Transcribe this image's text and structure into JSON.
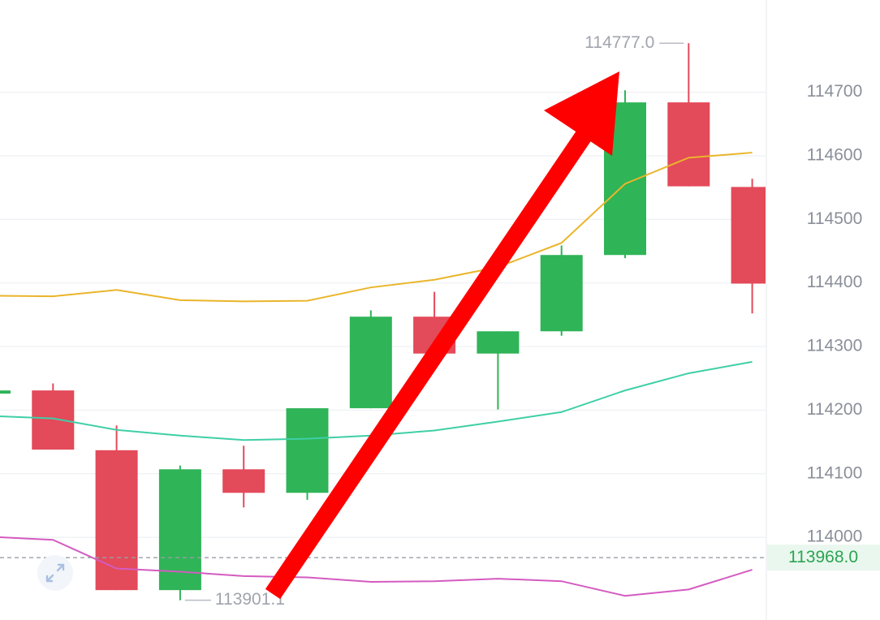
{
  "chart_data": {
    "type": "candlestick",
    "categories": [
      null,
      null,
      null,
      null,
      null,
      null,
      null,
      null,
      null,
      null,
      null,
      null,
      null
    ],
    "open": [
      114226,
      114231,
      114137,
      113917,
      114107,
      114070,
      114203,
      114347,
      114289,
      114324,
      114444,
      114684,
      114551
    ],
    "high": [
      114231,
      114242,
      114176,
      114113,
      114144,
      114203,
      114357,
      114386,
      114324,
      114459,
      114703,
      114777,
      114564
    ],
    "low": [
      114226,
      114138,
      113917,
      113901.1,
      114047,
      114059,
      114203,
      114276,
      114201,
      114317,
      114439,
      114552,
      114352
    ],
    "close": [
      114231,
      114138,
      113917,
      114107,
      114070,
      114203,
      114347,
      114289,
      114324,
      114444,
      114684,
      114552,
      114399
    ],
    "up_color": "#2fb457",
    "down_color": "#e34a5a",
    "moving_averages": [
      {
        "color": "#eab52a",
        "values": [
          114380,
          114379,
          114389,
          114373,
          114371,
          114372,
          114393,
          114405,
          114425,
          114463,
          114556,
          114597,
          114605
        ]
      },
      {
        "color": "#3fcfa6",
        "values": [
          114191,
          114187,
          114169,
          114160,
          114153,
          114155,
          114160,
          114168,
          114182,
          114197,
          114231,
          114258,
          114276
        ]
      },
      {
        "color": "#d45bc0",
        "values": [
          114001,
          113996,
          113951,
          113946,
          113939,
          113937,
          113930,
          113931,
          113935,
          113931,
          113908,
          113918,
          113949
        ]
      }
    ],
    "ylim": [
      113870,
      114845
    ],
    "yticks": [
      114000,
      114100,
      114200,
      114300,
      114400,
      114500,
      114600,
      114700
    ],
    "grid": true,
    "high_label": {
      "value": 114777,
      "label": "114777.0"
    },
    "low_label": 113901.1,
    "last_price": {
      "value": 113968,
      "label": "113968.0"
    }
  }
}
